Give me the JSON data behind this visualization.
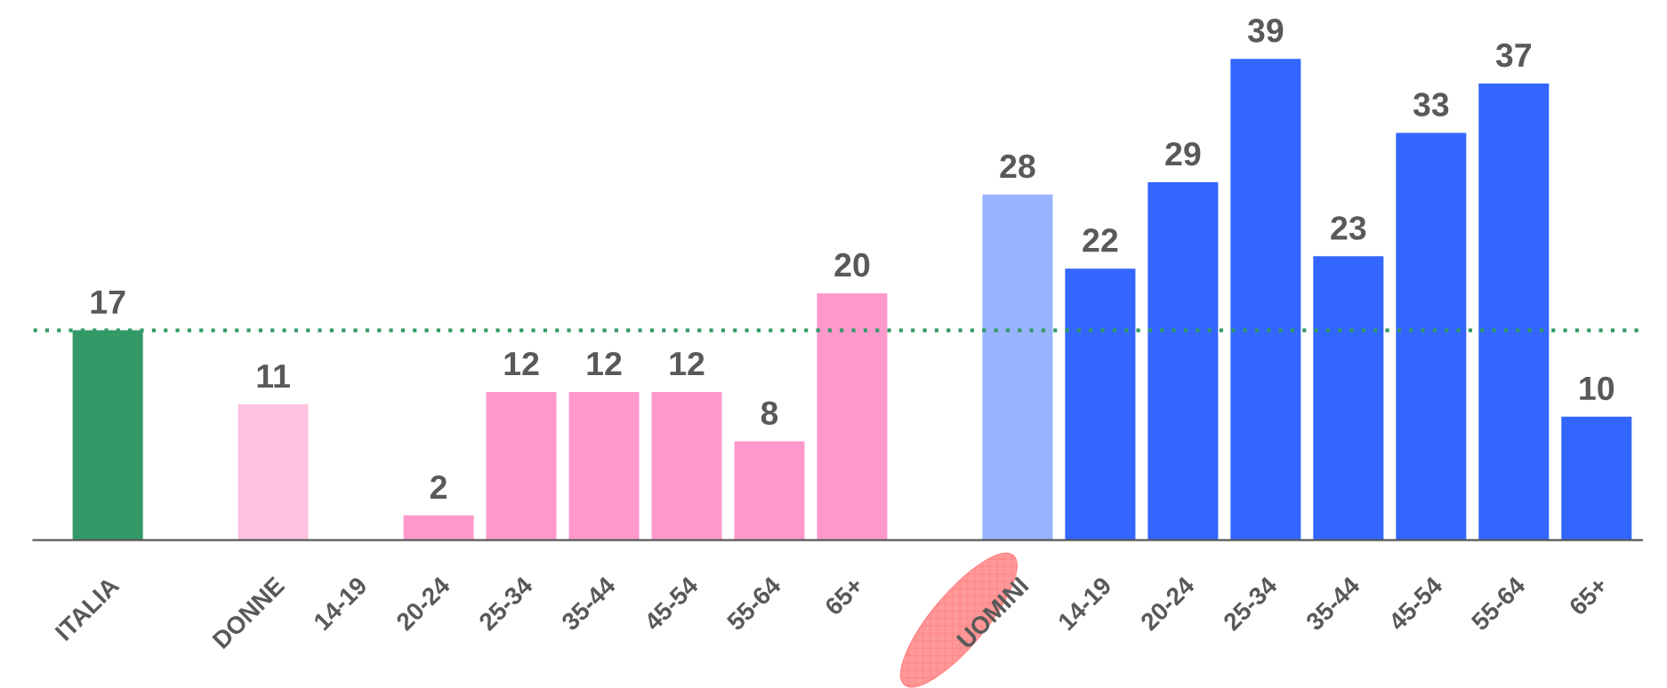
{
  "chart_data": {
    "type": "bar",
    "categories": [
      "ITALIA",
      null,
      "DONNE",
      "14-19",
      "20-24",
      "25-34",
      "35-44",
      "45-54",
      "55-64",
      "65+",
      null,
      "UOMINI",
      "14-19",
      "20-24",
      "25-34",
      "35-44",
      "45-54",
      "55-64",
      "65+"
    ],
    "values": [
      17,
      null,
      11,
      null,
      2,
      12,
      12,
      12,
      8,
      20,
      null,
      28,
      22,
      29,
      39,
      23,
      33,
      37,
      10
    ],
    "colors": [
      "#339966",
      null,
      "#ffc2e0",
      null,
      "#ff99cc",
      "#ff99cc",
      "#ff99cc",
      "#ff99cc",
      "#ff99cc",
      "#ff99cc",
      null,
      "#99b3ff",
      "#3366ff",
      "#3366ff",
      "#3366ff",
      "#3366ff",
      "#3366ff",
      "#3366ff",
      "#3366ff"
    ],
    "data_labels": true,
    "ref_lines": [
      {
        "axis": "y",
        "value": 17,
        "color": "#339966",
        "line_style": "dotted"
      }
    ],
    "grid": false
  }
}
